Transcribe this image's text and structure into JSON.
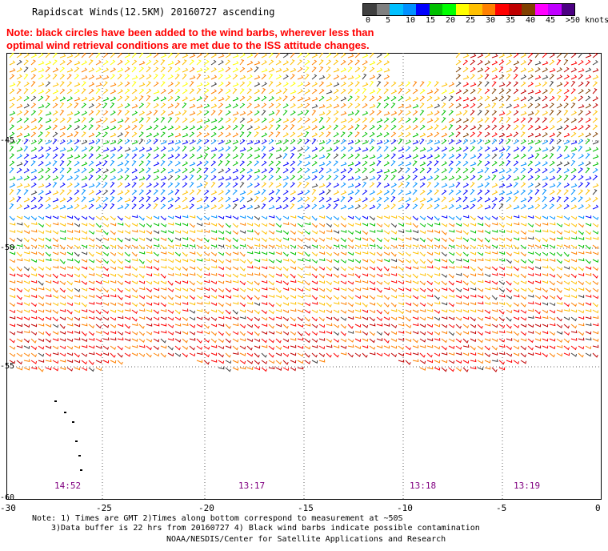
{
  "header": {
    "title": "Rapidscat Winds(12.5KM) 20160727 ascending",
    "note_line1": "Note: black circles have been added to the wind barbs, wherever less than",
    "note_line2": "optimal wind retrieval conditions are met due to the ISS attitude changes."
  },
  "legend": {
    "labels": [
      "0",
      "5",
      "10",
      "15",
      "20",
      "25",
      "30",
      "35",
      "40",
      "45",
      ">50 knots"
    ],
    "colors": [
      "#404040",
      "#808080",
      "#00c0ff",
      "#0090ff",
      "#0000ff",
      "#00c000",
      "#00ff00",
      "#ffff00",
      "#ffc000",
      "#ff8000",
      "#ff0000",
      "#c00000",
      "#804000",
      "#ff00ff",
      "#c000ff",
      "#4b0082"
    ]
  },
  "map": {
    "lon_ticks": [
      "-30",
      "-25",
      "-20",
      "-15",
      "-10",
      "-5",
      "0"
    ],
    "lat_ticks": [
      "-45",
      "-50",
      "-55",
      "-60"
    ],
    "time_labels": [
      "14:52",
      "13:17",
      "13:18",
      "13:19"
    ]
  },
  "footer": {
    "line1": "Note: 1) Times are GMT 2)Times along bottom correspond to measurement at ~50S",
    "line2": "3)Data buffer is 22 hrs from 20160727 4) Black wind barbs indicate possible contamination",
    "line3": "NOAA/NESDIS/Center for Satellite Applications and Research"
  }
}
